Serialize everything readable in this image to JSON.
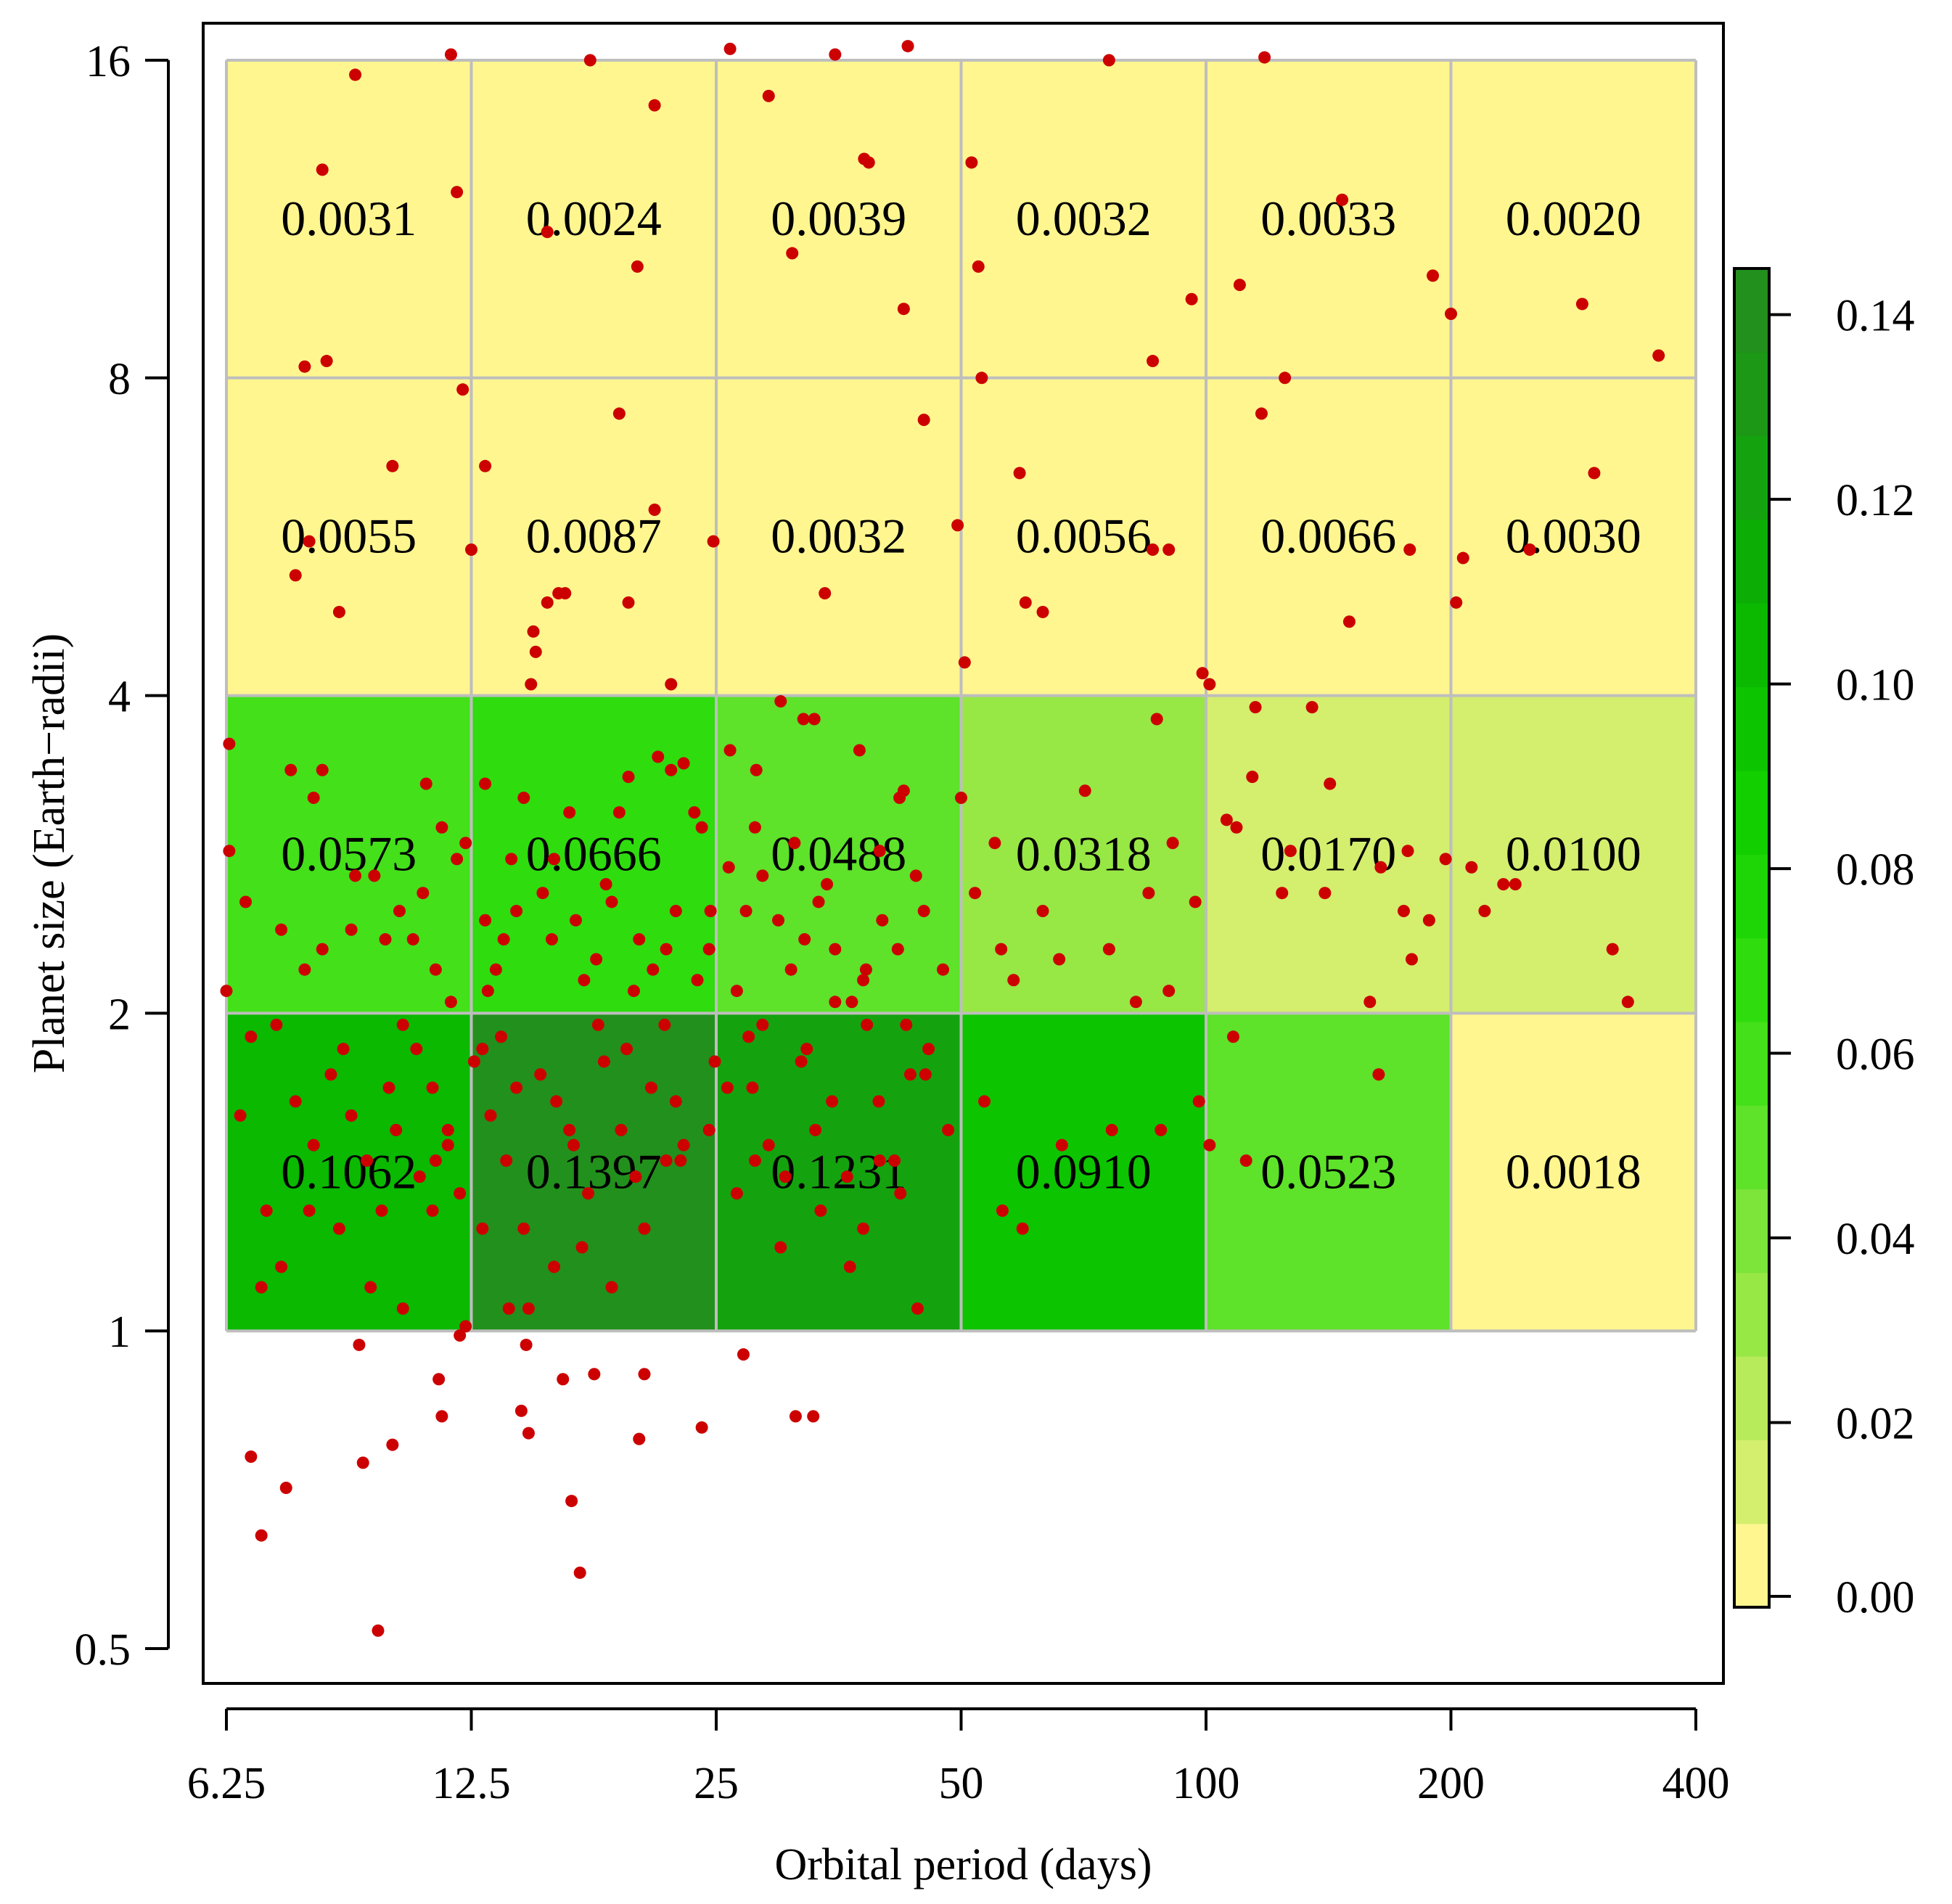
{
  "chart_data": {
    "type": "heatmap",
    "title": "",
    "xlabel": "Orbital period (days)",
    "ylabel": "Planet size (Earth−radii)",
    "x_scale": "log2",
    "y_scale": "log2",
    "xlim": [
      6.25,
      400
    ],
    "ylim": [
      0.5,
      16
    ],
    "x_ticks": [
      6.25,
      12.5,
      25,
      50,
      100,
      200,
      400
    ],
    "x_tick_labels": [
      "6.25",
      "12.5",
      "25",
      "50",
      "100",
      "200",
      "400"
    ],
    "y_ticks": [
      0.5,
      1,
      2,
      4,
      8,
      16
    ],
    "y_tick_labels": [
      "0.5",
      "1",
      "2",
      "4",
      "8",
      "16"
    ],
    "x_bins": [
      6.25,
      12.5,
      25,
      50,
      100,
      200,
      400
    ],
    "y_bins": [
      1,
      2,
      4,
      8,
      16
    ],
    "cells": [
      {
        "row_range": [
          8,
          16
        ],
        "labels": [
          "0.0031",
          "0.0024",
          "0.0039",
          "0.0032",
          "0.0033",
          "0.0020"
        ],
        "values": [
          0.0031,
          0.0024,
          0.0039,
          0.0032,
          0.0033,
          0.002
        ]
      },
      {
        "row_range": [
          4,
          8
        ],
        "labels": [
          "0.0055",
          "0.0087",
          "0.0032",
          "0.0056",
          "0.0066",
          "0.0030"
        ],
        "values": [
          0.0055,
          0.0087,
          0.0032,
          0.0056,
          0.0066,
          0.003
        ]
      },
      {
        "row_range": [
          2,
          4
        ],
        "labels": [
          "0.0573",
          "0.0666",
          "0.0488",
          "0.0318",
          "0.0170",
          "0.0100"
        ],
        "values": [
          0.0573,
          0.0666,
          0.0488,
          0.0318,
          0.017,
          0.01
        ]
      },
      {
        "row_range": [
          1,
          2
        ],
        "labels": [
          "0.1062",
          "0.1397",
          "0.1231",
          "0.0910",
          "0.0523",
          "0.0018"
        ],
        "values": [
          0.1062,
          0.1397,
          0.1231,
          0.091,
          0.0523,
          0.0018
        ]
      }
    ],
    "colorbar": {
      "range": [
        0,
        0.145
      ],
      "ticks": [
        0,
        0.02,
        0.04,
        0.06,
        0.08,
        0.1,
        0.12,
        0.14
      ],
      "tick_labels": [
        "0.00",
        "0.02",
        "0.04",
        "0.06",
        "0.08",
        "0.10",
        "0.12",
        "0.14"
      ],
      "colors": [
        "#FFF68F",
        "#D4EE6E",
        "#B8EB5C",
        "#97E745",
        "#7DE43A",
        "#5EE22A",
        "#44E01A",
        "#2FDC0E",
        "#1ED605",
        "#12CF00",
        "#0DC400",
        "#0AB900",
        "#0CAE06",
        "#14A30E",
        "#1C9816",
        "#22901C"
      ]
    },
    "points_color": "#CC0000",
    "points": [
      [
        9.0,
        15.5
      ],
      [
        11.8,
        16.2
      ],
      [
        17.5,
        16.0
      ],
      [
        26.0,
        16.4
      ],
      [
        35.0,
        16.2
      ],
      [
        43.0,
        16.5
      ],
      [
        76.0,
        16.0
      ],
      [
        118.0,
        16.1
      ],
      [
        8.2,
        12.6
      ],
      [
        12.0,
        12.0
      ],
      [
        21.0,
        14.5
      ],
      [
        29.0,
        14.8
      ],
      [
        38.0,
        12.9
      ],
      [
        38.5,
        12.8
      ],
      [
        51.5,
        12.8
      ],
      [
        15.5,
        11.0
      ],
      [
        20.0,
        10.2
      ],
      [
        31.0,
        10.5
      ],
      [
        42.5,
        9.3
      ],
      [
        52.5,
        10.2
      ],
      [
        96.0,
        9.5
      ],
      [
        110.0,
        9.8
      ],
      [
        147.0,
        11.8
      ],
      [
        190.0,
        10.0
      ],
      [
        200.0,
        9.2
      ],
      [
        290.0,
        9.4
      ],
      [
        360.0,
        8.4
      ],
      [
        7.8,
        8.2
      ],
      [
        8.3,
        8.3
      ],
      [
        12.2,
        7.8
      ],
      [
        53.0,
        8.0
      ],
      [
        86.0,
        8.3
      ],
      [
        125.0,
        8.0
      ],
      [
        117.0,
        7.4
      ],
      [
        45.0,
        7.3
      ],
      [
        19.0,
        7.4
      ],
      [
        10.0,
        6.6
      ],
      [
        13.0,
        6.6
      ],
      [
        21.0,
        6.0
      ],
      [
        24.8,
        5.6
      ],
      [
        12.5,
        5.5
      ],
      [
        7.9,
        5.6
      ],
      [
        7.6,
        5.2
      ],
      [
        8.6,
        4.8
      ],
      [
        16.0,
        5.0
      ],
      [
        16.3,
        5.0
      ],
      [
        15.5,
        4.9
      ],
      [
        19.5,
        4.9
      ],
      [
        14.9,
        4.6
      ],
      [
        15.0,
        4.4
      ],
      [
        14.8,
        4.1
      ],
      [
        22.0,
        4.1
      ],
      [
        34.0,
        5.0
      ],
      [
        49.5,
        5.8
      ],
      [
        50.5,
        4.3
      ],
      [
        60.0,
        4.9
      ],
      [
        63.0,
        4.8
      ],
      [
        59.0,
        6.5
      ],
      [
        86.0,
        5.5
      ],
      [
        90.0,
        5.5
      ],
      [
        99.0,
        4.2
      ],
      [
        101.0,
        4.1
      ],
      [
        150.0,
        4.7
      ],
      [
        178.0,
        5.5
      ],
      [
        203.0,
        4.9
      ],
      [
        207.0,
        5.4
      ],
      [
        250.0,
        5.5
      ],
      [
        300.0,
        6.5
      ],
      [
        115.0,
        3.9
      ],
      [
        135.0,
        3.9
      ],
      [
        30.0,
        3.95
      ],
      [
        33.0,
        3.8
      ],
      [
        6.3,
        3.6
      ],
      [
        7.5,
        3.4
      ],
      [
        8.2,
        3.4
      ],
      [
        8.0,
        3.2
      ],
      [
        11.0,
        3.3
      ],
      [
        11.5,
        3.0
      ],
      [
        12.0,
        2.8
      ],
      [
        13.0,
        3.3
      ],
      [
        14.5,
        3.2
      ],
      [
        16.5,
        3.1
      ],
      [
        19.0,
        3.1
      ],
      [
        19.5,
        3.35
      ],
      [
        21.2,
        3.5
      ],
      [
        22.0,
        3.4
      ],
      [
        22.8,
        3.45
      ],
      [
        23.5,
        3.1
      ],
      [
        24.0,
        3.0
      ],
      [
        26.0,
        3.55
      ],
      [
        28.0,
        3.4
      ],
      [
        32.0,
        3.8
      ],
      [
        37.5,
        3.55
      ],
      [
        42.0,
        3.2
      ],
      [
        42.5,
        3.25
      ],
      [
        44.0,
        2.7
      ],
      [
        50.0,
        3.2
      ],
      [
        55.0,
        2.9
      ],
      [
        71.0,
        3.25
      ],
      [
        87.0,
        3.8
      ],
      [
        91.0,
        2.9
      ],
      [
        114.0,
        3.35
      ],
      [
        106.0,
        3.05
      ],
      [
        109.0,
        3.0
      ],
      [
        127.0,
        2.85
      ],
      [
        142.0,
        3.3
      ],
      [
        164.0,
        2.75
      ],
      [
        177.0,
        2.85
      ],
      [
        197.0,
        2.8
      ],
      [
        212.0,
        2.75
      ],
      [
        232.0,
        2.65
      ],
      [
        240.0,
        2.65
      ],
      [
        220.0,
        2.5
      ],
      [
        188.0,
        2.45
      ],
      [
        175.0,
        2.5
      ],
      [
        140.0,
        2.6
      ],
      [
        124.0,
        2.6
      ],
      [
        6.3,
        2.85
      ],
      [
        6.6,
        2.55
      ],
      [
        7.3,
        2.4
      ],
      [
        7.8,
        2.2
      ],
      [
        8.2,
        2.3
      ],
      [
        8.9,
        2.4
      ],
      [
        9.5,
        2.7
      ],
      [
        10.2,
        2.5
      ],
      [
        10.6,
        2.35
      ],
      [
        11.3,
        2.2
      ],
      [
        13.1,
        2.1
      ],
      [
        13.7,
        2.35
      ],
      [
        14.2,
        2.5
      ],
      [
        15.3,
        2.6
      ],
      [
        16.8,
        2.45
      ],
      [
        17.8,
        2.25
      ],
      [
        18.6,
        2.55
      ],
      [
        20.1,
        2.35
      ],
      [
        20.9,
        2.2
      ],
      [
        21.7,
        2.3
      ],
      [
        22.3,
        2.5
      ],
      [
        23.7,
        2.15
      ],
      [
        25.9,
        2.75
      ],
      [
        27.2,
        2.5
      ],
      [
        28.5,
        2.7
      ],
      [
        29.8,
        2.45
      ],
      [
        30.9,
        2.2
      ],
      [
        32.1,
        2.35
      ],
      [
        33.4,
        2.55
      ],
      [
        35.0,
        2.3
      ],
      [
        36.7,
        2.05
      ],
      [
        38.2,
        2.2
      ],
      [
        40.0,
        2.45
      ],
      [
        41.8,
        2.3
      ],
      [
        45.0,
        2.5
      ],
      [
        47.5,
        2.2
      ],
      [
        52.0,
        2.6
      ],
      [
        56.0,
        2.3
      ],
      [
        58.0,
        2.15
      ],
      [
        63.0,
        2.5
      ],
      [
        66.0,
        2.25
      ],
      [
        76.0,
        2.3
      ],
      [
        82.0,
        2.05
      ],
      [
        85.0,
        2.6
      ],
      [
        90.0,
        2.1
      ],
      [
        97.0,
        2.55
      ],
      [
        159.0,
        2.05
      ],
      [
        179.0,
        2.25
      ],
      [
        316.0,
        2.3
      ],
      [
        330.0,
        2.05
      ],
      [
        6.25,
        2.1
      ],
      [
        9.0,
        2.7
      ],
      [
        12.3,
        2.9
      ],
      [
        15.8,
        2.8
      ],
      [
        18.3,
        2.65
      ],
      [
        27.9,
        3.0
      ],
      [
        31.2,
        2.9
      ],
      [
        39.7,
        2.85
      ],
      [
        9.8,
        2.35
      ],
      [
        10.9,
        2.6
      ],
      [
        14.0,
        2.8
      ],
      [
        17.2,
        2.15
      ],
      [
        19.8,
        2.1
      ],
      [
        26.5,
        2.1
      ],
      [
        34.2,
        2.65
      ],
      [
        37.9,
        2.15
      ],
      [
        24.5,
        2.3
      ],
      [
        11.8,
        2.05
      ],
      [
        13.4,
        2.2
      ],
      [
        6.7,
        1.9
      ],
      [
        7.2,
        1.95
      ],
      [
        7.6,
        1.65
      ],
      [
        8.0,
        1.5
      ],
      [
        8.4,
        1.75
      ],
      [
        8.9,
        1.6
      ],
      [
        9.3,
        1.45
      ],
      [
        9.7,
        1.3
      ],
      [
        10.1,
        1.55
      ],
      [
        10.7,
        1.85
      ],
      [
        11.2,
        1.7
      ],
      [
        11.7,
        1.55
      ],
      [
        12.1,
        1.35
      ],
      [
        12.6,
        1.8
      ],
      [
        13.2,
        1.6
      ],
      [
        13.8,
        1.45
      ],
      [
        14.5,
        1.25
      ],
      [
        15.2,
        1.75
      ],
      [
        15.9,
        1.65
      ],
      [
        16.7,
        1.5
      ],
      [
        17.4,
        1.35
      ],
      [
        18.2,
        1.8
      ],
      [
        19.1,
        1.55
      ],
      [
        19.9,
        1.4
      ],
      [
        20.8,
        1.7
      ],
      [
        21.7,
        1.45
      ],
      [
        22.8,
        1.5
      ],
      [
        24.5,
        1.55
      ],
      [
        26.5,
        1.35
      ],
      [
        27.7,
        1.7
      ],
      [
        29.0,
        1.5
      ],
      [
        30.4,
        1.4
      ],
      [
        31.8,
        1.8
      ],
      [
        33.1,
        1.55
      ],
      [
        34.7,
        1.65
      ],
      [
        36.2,
        1.4
      ],
      [
        37.9,
        1.25
      ],
      [
        39.6,
        1.65
      ],
      [
        41.4,
        1.45
      ],
      [
        43.3,
        1.75
      ],
      [
        45.6,
        1.85
      ],
      [
        48.2,
        1.55
      ],
      [
        53.4,
        1.65
      ],
      [
        56.2,
        1.3
      ],
      [
        59.5,
        1.25
      ],
      [
        66.5,
        1.5
      ],
      [
        76.6,
        1.55
      ],
      [
        88.0,
        1.55
      ],
      [
        98.0,
        1.65
      ],
      [
        101.0,
        1.5
      ],
      [
        108.0,
        1.9
      ],
      [
        112.0,
        1.45
      ],
      [
        163.0,
        1.75
      ],
      [
        6.5,
        1.6
      ],
      [
        6.9,
        1.1
      ],
      [
        7.3,
        1.15
      ],
      [
        7.9,
        1.3
      ],
      [
        8.6,
        1.25
      ],
      [
        9.4,
        1.1
      ],
      [
        10.3,
        1.05
      ],
      [
        11.2,
        1.3
      ],
      [
        12.9,
        1.25
      ],
      [
        13.9,
        1.05
      ],
      [
        14.7,
        1.05
      ],
      [
        15.8,
        1.15
      ],
      [
        17.1,
        1.2
      ],
      [
        18.6,
        1.1
      ],
      [
        20.4,
        1.25
      ],
      [
        22.6,
        1.45
      ],
      [
        24.9,
        1.8
      ],
      [
        27.9,
        1.45
      ],
      [
        30.0,
        1.2
      ],
      [
        33.6,
        1.3
      ],
      [
        36.5,
        1.15
      ],
      [
        39.7,
        1.45
      ],
      [
        42.1,
        1.35
      ],
      [
        44.2,
        1.05
      ],
      [
        16.5,
        1.55
      ],
      [
        21.6,
        1.95
      ],
      [
        28.5,
        1.95
      ],
      [
        38.3,
        1.95
      ],
      [
        10.3,
        1.95
      ],
      [
        12.9,
        1.85
      ],
      [
        9.1,
        0.97
      ],
      [
        12.1,
        0.99
      ],
      [
        12.3,
        1.01
      ],
      [
        14.6,
        0.97
      ],
      [
        16.2,
        0.9
      ],
      [
        17.7,
        0.91
      ],
      [
        20.4,
        0.91
      ],
      [
        27.0,
        0.95
      ],
      [
        11.4,
        0.9
      ],
      [
        11.5,
        0.83
      ],
      [
        14.4,
        0.84
      ],
      [
        14.7,
        0.8
      ],
      [
        20.1,
        0.79
      ],
      [
        24.0,
        0.81
      ],
      [
        31.3,
        0.83
      ],
      [
        32.9,
        0.83
      ],
      [
        6.7,
        0.76
      ],
      [
        7.4,
        0.71
      ],
      [
        6.9,
        0.64
      ],
      [
        9.2,
        0.75
      ],
      [
        10.0,
        0.78
      ],
      [
        16.6,
        0.69
      ],
      [
        17.0,
        0.59
      ],
      [
        9.6,
        0.52
      ],
      [
        11.7,
        1.5
      ],
      [
        10.8,
        1.4
      ],
      [
        7.0,
        1.3
      ],
      [
        8.7,
        1.85
      ],
      [
        9.9,
        1.7
      ],
      [
        11.3,
        1.45
      ],
      [
        13.6,
        1.9
      ],
      [
        14.2,
        1.7
      ],
      [
        17.9,
        1.95
      ],
      [
        19.4,
        1.85
      ],
      [
        22.3,
        1.65
      ],
      [
        25.8,
        1.7
      ],
      [
        27.4,
        1.9
      ],
      [
        32.3,
        1.85
      ],
      [
        35.0,
        2.05
      ],
      [
        42.8,
        1.95
      ],
      [
        45.2,
        1.75
      ],
      [
        24.6,
        2.5
      ],
      [
        13.0,
        2.45
      ],
      [
        15.7,
        2.35
      ]
    ]
  }
}
